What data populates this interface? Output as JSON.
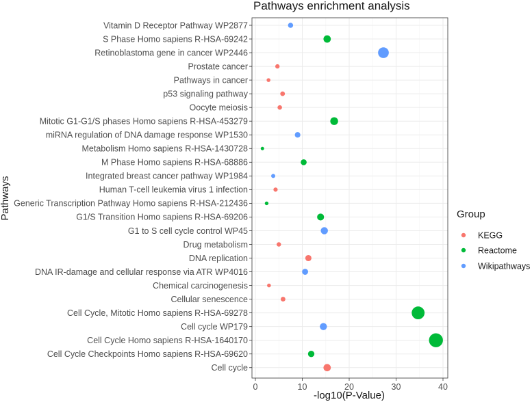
{
  "chart_data": {
    "type": "scatter",
    "title": "Pathways enrichment analysis",
    "xlabel": "-log10(P-Value)",
    "ylabel": "Pathways",
    "xlim": [
      0,
      40
    ],
    "xticks": [
      0,
      10,
      20,
      30,
      40
    ],
    "grid": true,
    "legend": {
      "title": "Group",
      "position": "right",
      "entries": [
        {
          "name": "KEGG",
          "color": "#F8766D"
        },
        {
          "name": "Reactome",
          "color": "#00BA38"
        },
        {
          "name": "Wikipathways",
          "color": "#619CFF"
        }
      ]
    },
    "points": [
      {
        "pathway": "Vitamin D Receptor Pathway WP2877",
        "value": 7.5,
        "group": "Wikipathways"
      },
      {
        "pathway": "S Phase Homo sapiens R-HSA-69242",
        "value": 15.3,
        "group": "Reactome"
      },
      {
        "pathway": "Retinoblastoma gene in cancer WP2446",
        "value": 27.3,
        "group": "Wikipathways"
      },
      {
        "pathway": "Prostate cancer",
        "value": 4.7,
        "group": "KEGG"
      },
      {
        "pathway": "Pathways in cancer",
        "value": 2.8,
        "group": "KEGG"
      },
      {
        "pathway": "p53 signaling pathway",
        "value": 5.8,
        "group": "KEGG"
      },
      {
        "pathway": "Oocyte meiosis",
        "value": 5.2,
        "group": "KEGG"
      },
      {
        "pathway": "Mitotic G1-G1/S phases Homo sapiens R-HSA-453279",
        "value": 16.8,
        "group": "Reactome"
      },
      {
        "pathway": "miRNA regulation of DNA damage response WP1530",
        "value": 9.0,
        "group": "Wikipathways"
      },
      {
        "pathway": "Metabolism Homo sapiens R-HSA-1430728",
        "value": 1.5,
        "group": "Reactome"
      },
      {
        "pathway": "M Phase Homo sapiens R-HSA-68886",
        "value": 10.3,
        "group": "Reactome"
      },
      {
        "pathway": "Integrated breast cancer pathway WP1984",
        "value": 3.8,
        "group": "Wikipathways"
      },
      {
        "pathway": "Human T-cell leukemia virus 1 infection",
        "value": 4.3,
        "group": "KEGG"
      },
      {
        "pathway": "Generic Transcription Pathway Homo sapiens R-HSA-212436",
        "value": 2.4,
        "group": "Reactome"
      },
      {
        "pathway": "G1/S Transition Homo sapiens R-HSA-69206",
        "value": 13.9,
        "group": "Reactome"
      },
      {
        "pathway": "G1 to S cell cycle control WP45",
        "value": 14.7,
        "group": "Wikipathways"
      },
      {
        "pathway": "Drug metabolism",
        "value": 5.0,
        "group": "KEGG"
      },
      {
        "pathway": "DNA replication",
        "value": 11.3,
        "group": "KEGG"
      },
      {
        "pathway": "DNA IR-damage and cellular response via ATR WP4016",
        "value": 10.6,
        "group": "Wikipathways"
      },
      {
        "pathway": "Chemical carcinogenesis",
        "value": 2.9,
        "group": "KEGG"
      },
      {
        "pathway": "Cellular senescence",
        "value": 5.9,
        "group": "KEGG"
      },
      {
        "pathway": "Cell Cycle, Mitotic Homo sapiens R-HSA-69278",
        "value": 34.7,
        "group": "Reactome"
      },
      {
        "pathway": "Cell cycle WP179",
        "value": 14.5,
        "group": "Wikipathways"
      },
      {
        "pathway": "Cell Cycle Homo sapiens R-HSA-1640170",
        "value": 38.5,
        "group": "Reactome"
      },
      {
        "pathway": "Cell Cycle Checkpoints Homo sapiens R-HSA-69620",
        "value": 11.9,
        "group": "Reactome"
      },
      {
        "pathway": "Cell cycle",
        "value": 15.3,
        "group": "KEGG"
      }
    ]
  }
}
